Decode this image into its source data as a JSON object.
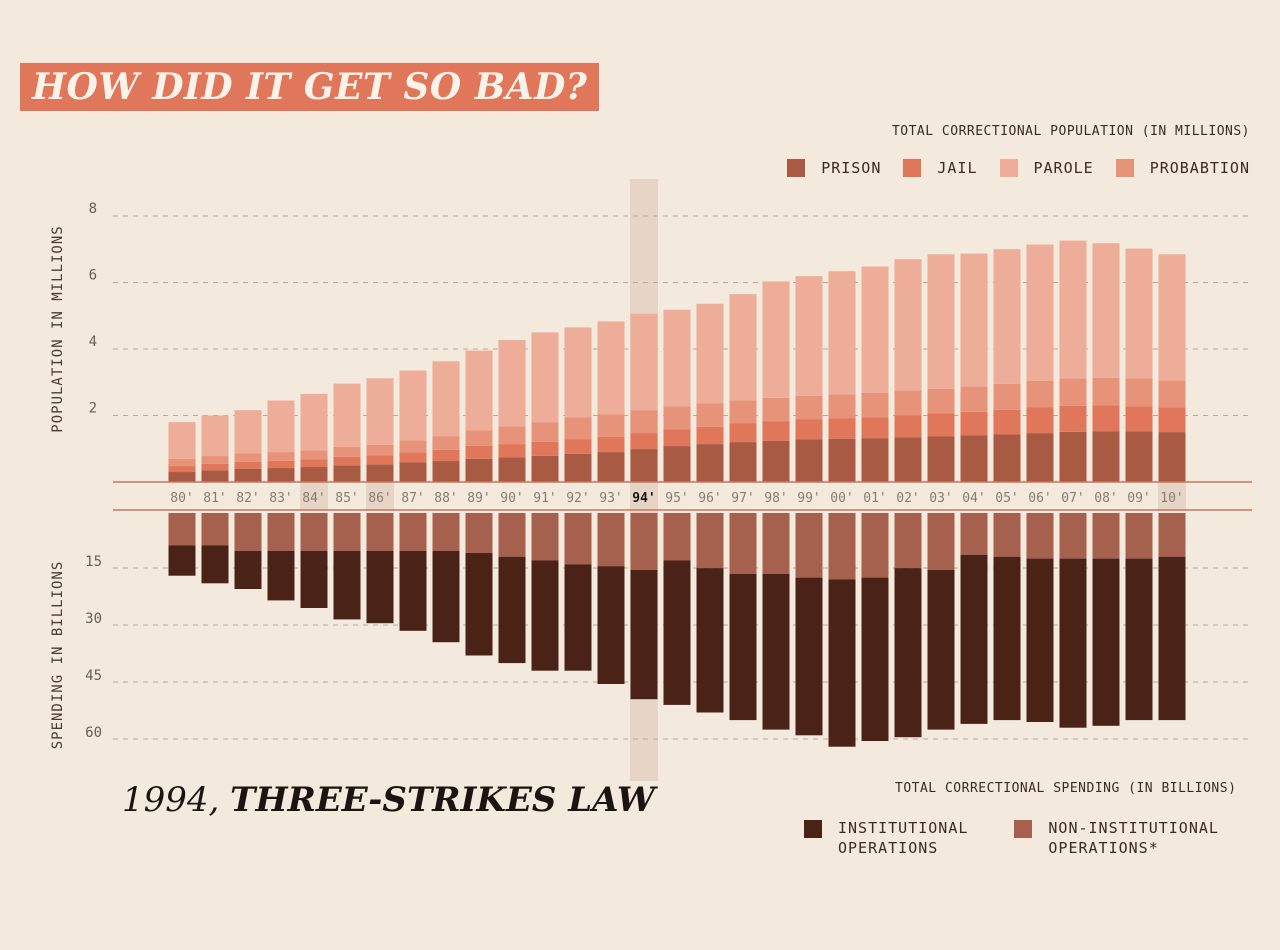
{
  "header": {
    "title": "HOW DID IT GET SO BAD?"
  },
  "population_title": "TOTAL CORRECTIONAL POPULATION (IN MILLIONS)",
  "spending_title": "TOTAL CORRECTIONAL SPENDING (IN BILLIONS)",
  "legend_top": [
    {
      "label": "PRISON",
      "color": "#a95a43"
    },
    {
      "label": "JAIL",
      "color": "#e0765a"
    },
    {
      "label": "PAROLE",
      "color": "#edad98"
    },
    {
      "label": "PROBABTION",
      "color": "#e6937a"
    }
  ],
  "legend_bottom": [
    {
      "label": "INSTITUTIONAL\nOPERATIONS",
      "color": "#4a2218"
    },
    {
      "label": "NON-INSTITUTIONAL\nOPERATIONS*",
      "color": "#a5614e"
    }
  ],
  "annotation": {
    "year": "1994,",
    "law": "THREE-STRIKES LAW"
  },
  "chart_data": [
    {
      "type": "bar",
      "stacked": true,
      "ylabel": "POPULATION IN MILLIONS",
      "ylim": [
        0,
        8
      ],
      "yticks": [
        "2",
        "4",
        "6",
        "8"
      ],
      "ytick_values": [
        2,
        4,
        6,
        8
      ],
      "grid": true,
      "categories": [
        "80'",
        "81'",
        "82'",
        "83'",
        "84'",
        "85'",
        "86'",
        "87'",
        "88'",
        "89'",
        "90'",
        "91'",
        "92'",
        "93'",
        "94'",
        "95'",
        "96'",
        "97'",
        "98'",
        "99'",
        "00'",
        "01'",
        "02'",
        "03'",
        "04'",
        "05'",
        "06'",
        "07'",
        "08'",
        "09'",
        "10'"
      ],
      "highlight_category": "94'",
      "series": [
        {
          "name": "PRISON",
          "color": "#a95a43",
          "values": [
            0.3,
            0.35,
            0.4,
            0.42,
            0.45,
            0.5,
            0.53,
            0.59,
            0.63,
            0.7,
            0.74,
            0.79,
            0.85,
            0.9,
            0.99,
            1.08,
            1.14,
            1.2,
            1.24,
            1.28,
            1.3,
            1.32,
            1.34,
            1.37,
            1.4,
            1.43,
            1.47,
            1.51,
            1.52,
            1.52,
            1.5
          ]
        },
        {
          "name": "JAIL",
          "color": "#e0765a",
          "values": [
            0.18,
            0.2,
            0.21,
            0.22,
            0.23,
            0.26,
            0.27,
            0.3,
            0.34,
            0.39,
            0.4,
            0.42,
            0.44,
            0.46,
            0.48,
            0.5,
            0.52,
            0.56,
            0.59,
            0.6,
            0.62,
            0.63,
            0.66,
            0.69,
            0.71,
            0.74,
            0.77,
            0.78,
            0.78,
            0.76,
            0.75
          ]
        },
        {
          "name": "PROBABTION",
          "color": "#e6937a",
          "values": [
            0.22,
            0.23,
            0.25,
            0.26,
            0.27,
            0.3,
            0.32,
            0.36,
            0.41,
            0.46,
            0.53,
            0.59,
            0.66,
            0.67,
            0.69,
            0.7,
            0.7,
            0.69,
            0.7,
            0.71,
            0.72,
            0.73,
            0.75,
            0.74,
            0.76,
            0.78,
            0.8,
            0.82,
            0.83,
            0.84,
            0.8
          ]
        },
        {
          "name": "PAROLE",
          "color": "#edad98",
          "values": [
            1.1,
            1.22,
            1.3,
            1.55,
            1.7,
            1.9,
            2.0,
            2.1,
            2.25,
            2.4,
            2.6,
            2.7,
            2.7,
            2.8,
            2.9,
            2.9,
            3.0,
            3.2,
            3.5,
            3.6,
            3.7,
            3.8,
            3.95,
            4.05,
            4.0,
            4.05,
            4.1,
            4.15,
            4.05,
            3.9,
            3.8
          ]
        }
      ]
    },
    {
      "type": "bar",
      "stacked": true,
      "ylabel": "SPENDING IN BILLIONS",
      "ylim": [
        0,
        60
      ],
      "yticks": [
        "15",
        "30",
        "45",
        "60"
      ],
      "ytick_values": [
        15,
        30,
        45,
        60
      ],
      "grid": true,
      "categories": [
        "80'",
        "81'",
        "82'",
        "83'",
        "84'",
        "85'",
        "86'",
        "87'",
        "88'",
        "89'",
        "90'",
        "91'",
        "92'",
        "93'",
        "94'",
        "95'",
        "96'",
        "97'",
        "98'",
        "99'",
        "00'",
        "01'",
        "02'",
        "03'",
        "04'",
        "05'",
        "06'",
        "07'",
        "08'",
        "09'",
        "10'"
      ],
      "series": [
        {
          "name": "NON-INSTITUTIONAL OPERATIONS*",
          "color": "#a5614e",
          "values": [
            8.5,
            8.5,
            10,
            10,
            10,
            10,
            10,
            10,
            10,
            10.5,
            11.5,
            12.5,
            13.5,
            14,
            15,
            12.5,
            14.5,
            16,
            16,
            17,
            17.5,
            17,
            14.5,
            15,
            11,
            11.5,
            12,
            12,
            12,
            12,
            11.5
          ]
        },
        {
          "name": "INSTITUTIONAL OPERATIONS",
          "color": "#4a2218",
          "values": [
            8,
            10,
            10,
            13,
            15,
            18,
            19,
            21,
            24,
            27,
            28,
            29,
            28,
            31,
            34,
            38,
            38,
            38.5,
            41,
            41.5,
            44,
            43,
            44.5,
            42,
            44.5,
            43,
            43,
            44.5,
            44,
            42.5,
            43
          ]
        }
      ]
    }
  ]
}
